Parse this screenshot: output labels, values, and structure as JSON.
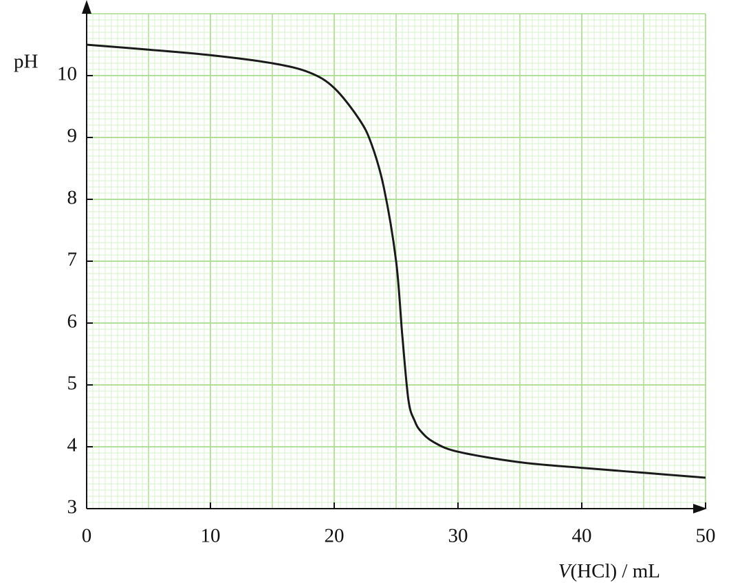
{
  "chart_data": {
    "type": "line",
    "x_label": "V(HCl) / mL",
    "y_label": "pH",
    "x": [
      0,
      5,
      10,
      15,
      18,
      20,
      22,
      23,
      24,
      25,
      25.5,
      26,
      26.5,
      27,
      28,
      30,
      35,
      40,
      45,
      50
    ],
    "series": [
      {
        "color": "#1a1a1a",
        "values": [
          10.5,
          10.42,
          10.33,
          10.2,
          10.05,
          9.8,
          9.3,
          8.9,
          8.2,
          7.0,
          5.8,
          4.75,
          4.42,
          4.25,
          4.08,
          3.92,
          3.75,
          3.66,
          3.58,
          3.5
        ]
      }
    ],
    "xlim": [
      0,
      50
    ],
    "ylim": [
      3,
      11
    ],
    "xticks": [
      0,
      10,
      20,
      30,
      40,
      50
    ],
    "yticks": [
      3,
      4,
      5,
      6,
      7,
      8,
      9,
      10
    ],
    "grid": true
  }
}
